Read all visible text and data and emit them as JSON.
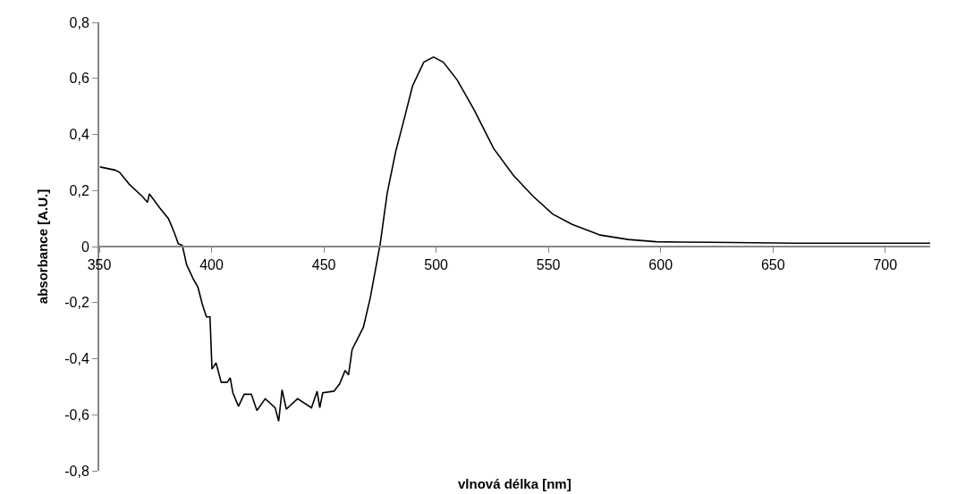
{
  "chart_data": {
    "type": "line",
    "xlabel": "vlnová délka [nm]",
    "ylabel": "absorbance [A.U.]",
    "x": [
      350.3,
      357,
      359,
      363.4,
      369,
      371.5,
      372.3,
      377,
      380.8,
      383.3,
      385.2,
      387,
      388.9,
      392,
      393.9,
      395.8,
      397.7,
      399.3,
      400.2,
      402,
      404.3,
      407,
      408.3,
      409.5,
      412,
      414.5,
      417.7,
      420.2,
      423.9,
      428.3,
      429.9,
      431.4,
      433.3,
      438.3,
      444.5,
      447,
      448.2,
      449.5,
      454.5,
      457,
      459.5,
      461,
      462.6,
      467.6,
      470.7,
      475.1,
      478.2,
      482,
      485.1,
      489.5,
      494.5,
      498.8,
      503.2,
      509.4,
      516.9,
      525.6,
      534.4,
      543.1,
      551.9,
      560.6,
      573.1,
      585.6,
      598,
      623,
      660,
      700,
      720
    ],
    "series": [
      {
        "color": "#000000",
        "values": [
          0.284,
          0.273,
          0.265,
          0.222,
          0.18,
          0.158,
          0.188,
          0.137,
          0.1,
          0.052,
          0.01,
          0.004,
          -0.065,
          -0.118,
          -0.144,
          -0.203,
          -0.251,
          -0.251,
          -0.437,
          -0.415,
          -0.484,
          -0.484,
          -0.468,
          -0.522,
          -0.57,
          -0.527,
          -0.527,
          -0.585,
          -0.543,
          -0.575,
          -0.623,
          -0.511,
          -0.58,
          -0.543,
          -0.575,
          -0.516,
          -0.575,
          -0.522,
          -0.516,
          -0.49,
          -0.442,
          -0.458,
          -0.367,
          -0.288,
          -0.182,
          0.01,
          0.19,
          0.339,
          0.434,
          0.573,
          0.658,
          0.676,
          0.658,
          0.594,
          0.488,
          0.35,
          0.254,
          0.18,
          0.116,
          0.079,
          0.041,
          0.025,
          0.017,
          0.015,
          0.012,
          0.012,
          0.012
        ]
      }
    ],
    "xlim": [
      350,
      720
    ],
    "xticks": [
      350,
      400,
      450,
      500,
      550,
      600,
      650,
      700
    ],
    "ylim": [
      -0.8,
      0.8
    ],
    "yticks": [
      {
        "value": 0.8,
        "label": "0,8"
      },
      {
        "value": 0.6,
        "label": "0,6"
      },
      {
        "value": 0.4,
        "label": "0,4"
      },
      {
        "value": 0.2,
        "label": "0,2"
      },
      0,
      {
        "value": -0.2,
        "label": "-0,2"
      },
      {
        "value": -0.4,
        "label": "-0,4"
      },
      {
        "value": -0.6,
        "label": "-0,6"
      },
      {
        "value": -0.8,
        "label": "-0,8"
      }
    ],
    "marker": "none",
    "line_style": "solid"
  }
}
